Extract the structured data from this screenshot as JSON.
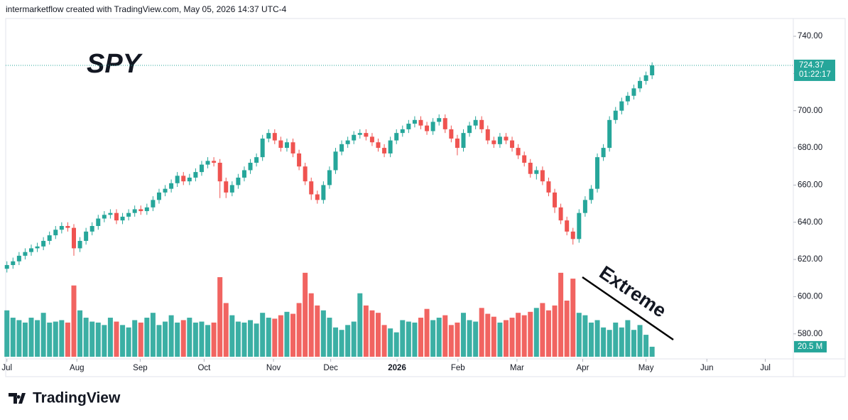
{
  "header": {
    "caption": "intermarketflow created with TradingView.com, May 05, 2026 14:37 UTC-4",
    "brand": "TradingView"
  },
  "chart_data": {
    "type": "candlestick",
    "title": "SPY",
    "annotation": "Extreme",
    "open": [
      615,
      617,
      619,
      622,
      624,
      626,
      627,
      630,
      633,
      636,
      638,
      637,
      626,
      630,
      635,
      638,
      642,
      644,
      645,
      641,
      643,
      645,
      647,
      646,
      648,
      652,
      656,
      658,
      661,
      665,
      662,
      664,
      667,
      671,
      673,
      672,
      662,
      656,
      660,
      664,
      668,
      672,
      675,
      685,
      688,
      684,
      680,
      683,
      677,
      670,
      662,
      655,
      652,
      660,
      668,
      678,
      682,
      684,
      687,
      688,
      686,
      683,
      680,
      677,
      684,
      688,
      690,
      693,
      695,
      692,
      689,
      694,
      696,
      690,
      685,
      680,
      688,
      692,
      695,
      690,
      684,
      682,
      686,
      684,
      680,
      676,
      672,
      666,
      668,
      662,
      656,
      648,
      641,
      635,
      631,
      645,
      652,
      658,
      675,
      680,
      695,
      700,
      705,
      708,
      712,
      716,
      719
    ],
    "high": [
      619,
      621,
      624,
      626,
      628,
      629,
      632,
      635,
      638,
      640,
      640,
      639,
      632,
      637,
      640,
      644,
      646,
      647,
      647,
      645,
      647,
      649,
      649,
      650,
      654,
      658,
      660,
      663,
      667,
      667,
      666,
      669,
      673,
      675,
      675,
      674,
      664,
      662,
      666,
      670,
      674,
      677,
      687,
      690,
      690,
      686,
      685,
      685,
      679,
      672,
      664,
      657,
      662,
      670,
      680,
      684,
      686,
      689,
      690,
      690,
      688,
      685,
      682,
      686,
      690,
      692,
      695,
      697,
      697,
      694,
      696,
      698,
      698,
      692,
      687,
      690,
      694,
      697,
      697,
      692,
      686,
      688,
      688,
      686,
      682,
      678,
      674,
      670,
      670,
      664,
      658,
      650,
      643,
      637,
      647,
      654,
      660,
      677,
      682,
      697,
      702,
      707,
      710,
      714,
      718,
      721,
      726
    ],
    "low": [
      613,
      615,
      617,
      620,
      622,
      624,
      625,
      628,
      631,
      634,
      635,
      622,
      624,
      628,
      633,
      636,
      640,
      642,
      639,
      639,
      641,
      643,
      644,
      644,
      646,
      650,
      654,
      656,
      659,
      660,
      660,
      662,
      665,
      669,
      670,
      653,
      653,
      654,
      658,
      662,
      666,
      670,
      673,
      683,
      682,
      678,
      678,
      675,
      668,
      660,
      652,
      650,
      650,
      658,
      666,
      676,
      680,
      682,
      685,
      684,
      681,
      678,
      675,
      675,
      682,
      686,
      688,
      691,
      690,
      687,
      687,
      692,
      688,
      683,
      676,
      678,
      686,
      690,
      688,
      682,
      680,
      680,
      682,
      678,
      674,
      670,
      664,
      663,
      660,
      654,
      645,
      639,
      633,
      628,
      629,
      643,
      650,
      656,
      673,
      678,
      693,
      698,
      703,
      706,
      710,
      714,
      717
    ],
    "close": [
      617,
      619,
      622,
      624,
      626,
      627,
      630,
      633,
      636,
      638,
      637,
      626,
      630,
      635,
      638,
      642,
      644,
      645,
      641,
      643,
      645,
      647,
      646,
      648,
      652,
      656,
      658,
      661,
      665,
      662,
      664,
      667,
      671,
      673,
      672,
      662,
      656,
      660,
      664,
      668,
      672,
      675,
      685,
      688,
      684,
      680,
      683,
      677,
      670,
      662,
      655,
      652,
      660,
      668,
      678,
      682,
      684,
      687,
      688,
      686,
      683,
      680,
      677,
      684,
      688,
      690,
      693,
      695,
      692,
      689,
      694,
      696,
      690,
      685,
      680,
      688,
      692,
      695,
      690,
      684,
      682,
      686,
      684,
      680,
      676,
      672,
      666,
      668,
      662,
      656,
      648,
      641,
      635,
      631,
      645,
      652,
      658,
      675,
      680,
      695,
      700,
      705,
      708,
      712,
      716,
      719,
      724.37
    ],
    "volume": [
      95,
      80,
      75,
      70,
      80,
      75,
      90,
      70,
      72,
      75,
      70,
      146,
      95,
      80,
      72,
      70,
      65,
      80,
      72,
      65,
      60,
      75,
      70,
      80,
      90,
      65,
      72,
      85,
      70,
      75,
      80,
      70,
      72,
      65,
      70,
      163,
      110,
      85,
      72,
      70,
      75,
      68,
      90,
      80,
      78,
      85,
      92,
      88,
      110,
      172,
      130,
      105,
      95,
      80,
      60,
      55,
      65,
      72,
      130,
      105,
      95,
      90,
      65,
      58,
      50,
      75,
      72,
      70,
      80,
      98,
      75,
      80,
      85,
      65,
      70,
      90,
      75,
      72,
      100,
      88,
      82,
      70,
      75,
      80,
      90,
      85,
      92,
      100,
      110,
      95,
      105,
      172,
      115,
      160,
      90,
      85,
      70,
      75,
      60,
      55,
      70,
      60,
      75,
      55,
      65,
      45,
      20.5
    ],
    "volume_label": "20.5 M",
    "last_price": 724.37,
    "countdown": "01:22:17",
    "up_color": "#26a69a",
    "down_color": "#ef5350",
    "xlim": [
      -0.2,
      129.2
    ],
    "xticks": [
      {
        "value": 0,
        "label": "Jul"
      },
      {
        "value": 11.5,
        "label": "Aug"
      },
      {
        "value": 21.9,
        "label": "Sep"
      },
      {
        "value": 32.4,
        "label": "Oct"
      },
      {
        "value": 43.8,
        "label": "Nov"
      },
      {
        "value": 53.2,
        "label": "Dec"
      },
      {
        "value": 64.1,
        "label": "2026"
      },
      {
        "value": 74.1,
        "label": "Feb"
      },
      {
        "value": 83.8,
        "label": "Mar"
      },
      {
        "value": 94.6,
        "label": "Apr"
      },
      {
        "value": 105,
        "label": "May"
      },
      {
        "value": 115,
        "label": "Jun"
      },
      {
        "value": 124.6,
        "label": "Jul"
      }
    ],
    "ylim": [
      567.7,
      748.8
    ],
    "yticks": [
      {
        "value": 580,
        "label": "580.00"
      },
      {
        "value": 600,
        "label": "600.00"
      },
      {
        "value": 620,
        "label": "620.00"
      },
      {
        "value": 640,
        "label": "640.00"
      },
      {
        "value": 660,
        "label": "660.00"
      },
      {
        "value": 680,
        "label": "680.00"
      },
      {
        "value": 700,
        "label": "700.00"
      },
      {
        "value": 720,
        "label": "720.00"
      },
      {
        "value": 740,
        "label": "740.00"
      }
    ],
    "volume_lim": [
      0,
      690
    ]
  }
}
